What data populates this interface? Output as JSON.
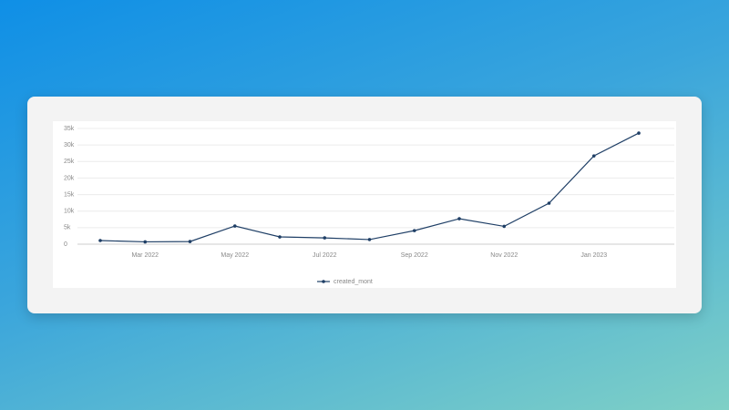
{
  "chart_data": {
    "type": "line",
    "categories": [
      null,
      "Mar 2022",
      null,
      "May 2022",
      null,
      "Jul 2022",
      null,
      "Sep 2022",
      null,
      "Nov 2022",
      null,
      "Jan 2023",
      null
    ],
    "series": [
      {
        "name": "created_mont",
        "color": "#1f3f66",
        "values": [
          1100,
          700,
          800,
          5500,
          2200,
          1900,
          1400,
          4100,
          7700,
          5400,
          12400,
          26700,
          33600
        ]
      }
    ],
    "ylim": [
      0,
      35000
    ],
    "yticks": [
      0,
      {
        "value": 5000,
        "label": "5k"
      },
      {
        "value": 10000,
        "label": "10k"
      },
      {
        "value": 15000,
        "label": "15k"
      },
      {
        "value": 20000,
        "label": "20k"
      },
      {
        "value": 25000,
        "label": "25k"
      },
      {
        "value": 30000,
        "label": "30k"
      },
      {
        "value": 35000,
        "label": "35k"
      }
    ],
    "grid": true,
    "legend": "bottom"
  }
}
